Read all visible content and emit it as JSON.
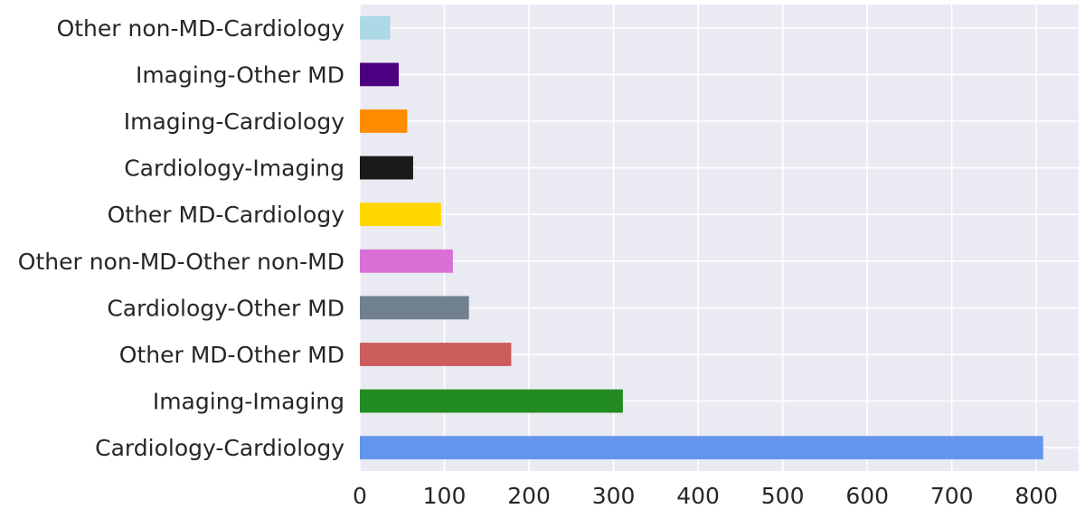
{
  "chart_data": {
    "type": "bar",
    "orientation": "horizontal",
    "categories": [
      "Cardiology-Cardiology",
      "Imaging-Imaging",
      "Other MD-Other MD",
      "Cardiology-Other MD",
      "Other non-MD-Other non-MD",
      "Other MD-Cardiology",
      "Cardiology-Imaging",
      "Imaging-Cardiology",
      "Imaging-Other MD",
      "Other non-MD-Cardiology"
    ],
    "values": [
      808,
      311,
      179,
      129,
      110,
      96,
      63,
      56,
      46,
      36
    ],
    "colors": [
      "#6495ED",
      "#228B22",
      "#CD5C5C",
      "#708090",
      "#DA70D6",
      "#FFD700",
      "#1A1A1A",
      "#FF8C00",
      "#4B0082",
      "#ADD8E6"
    ],
    "xticks": [
      "0",
      "100",
      "200",
      "300",
      "400",
      "500",
      "600",
      "700",
      "800"
    ],
    "xlim": [
      0,
      850
    ],
    "title": "",
    "xlabel": "",
    "ylabel": "",
    "grid": true,
    "background_color": "#EAEAF2",
    "legend": "none"
  }
}
